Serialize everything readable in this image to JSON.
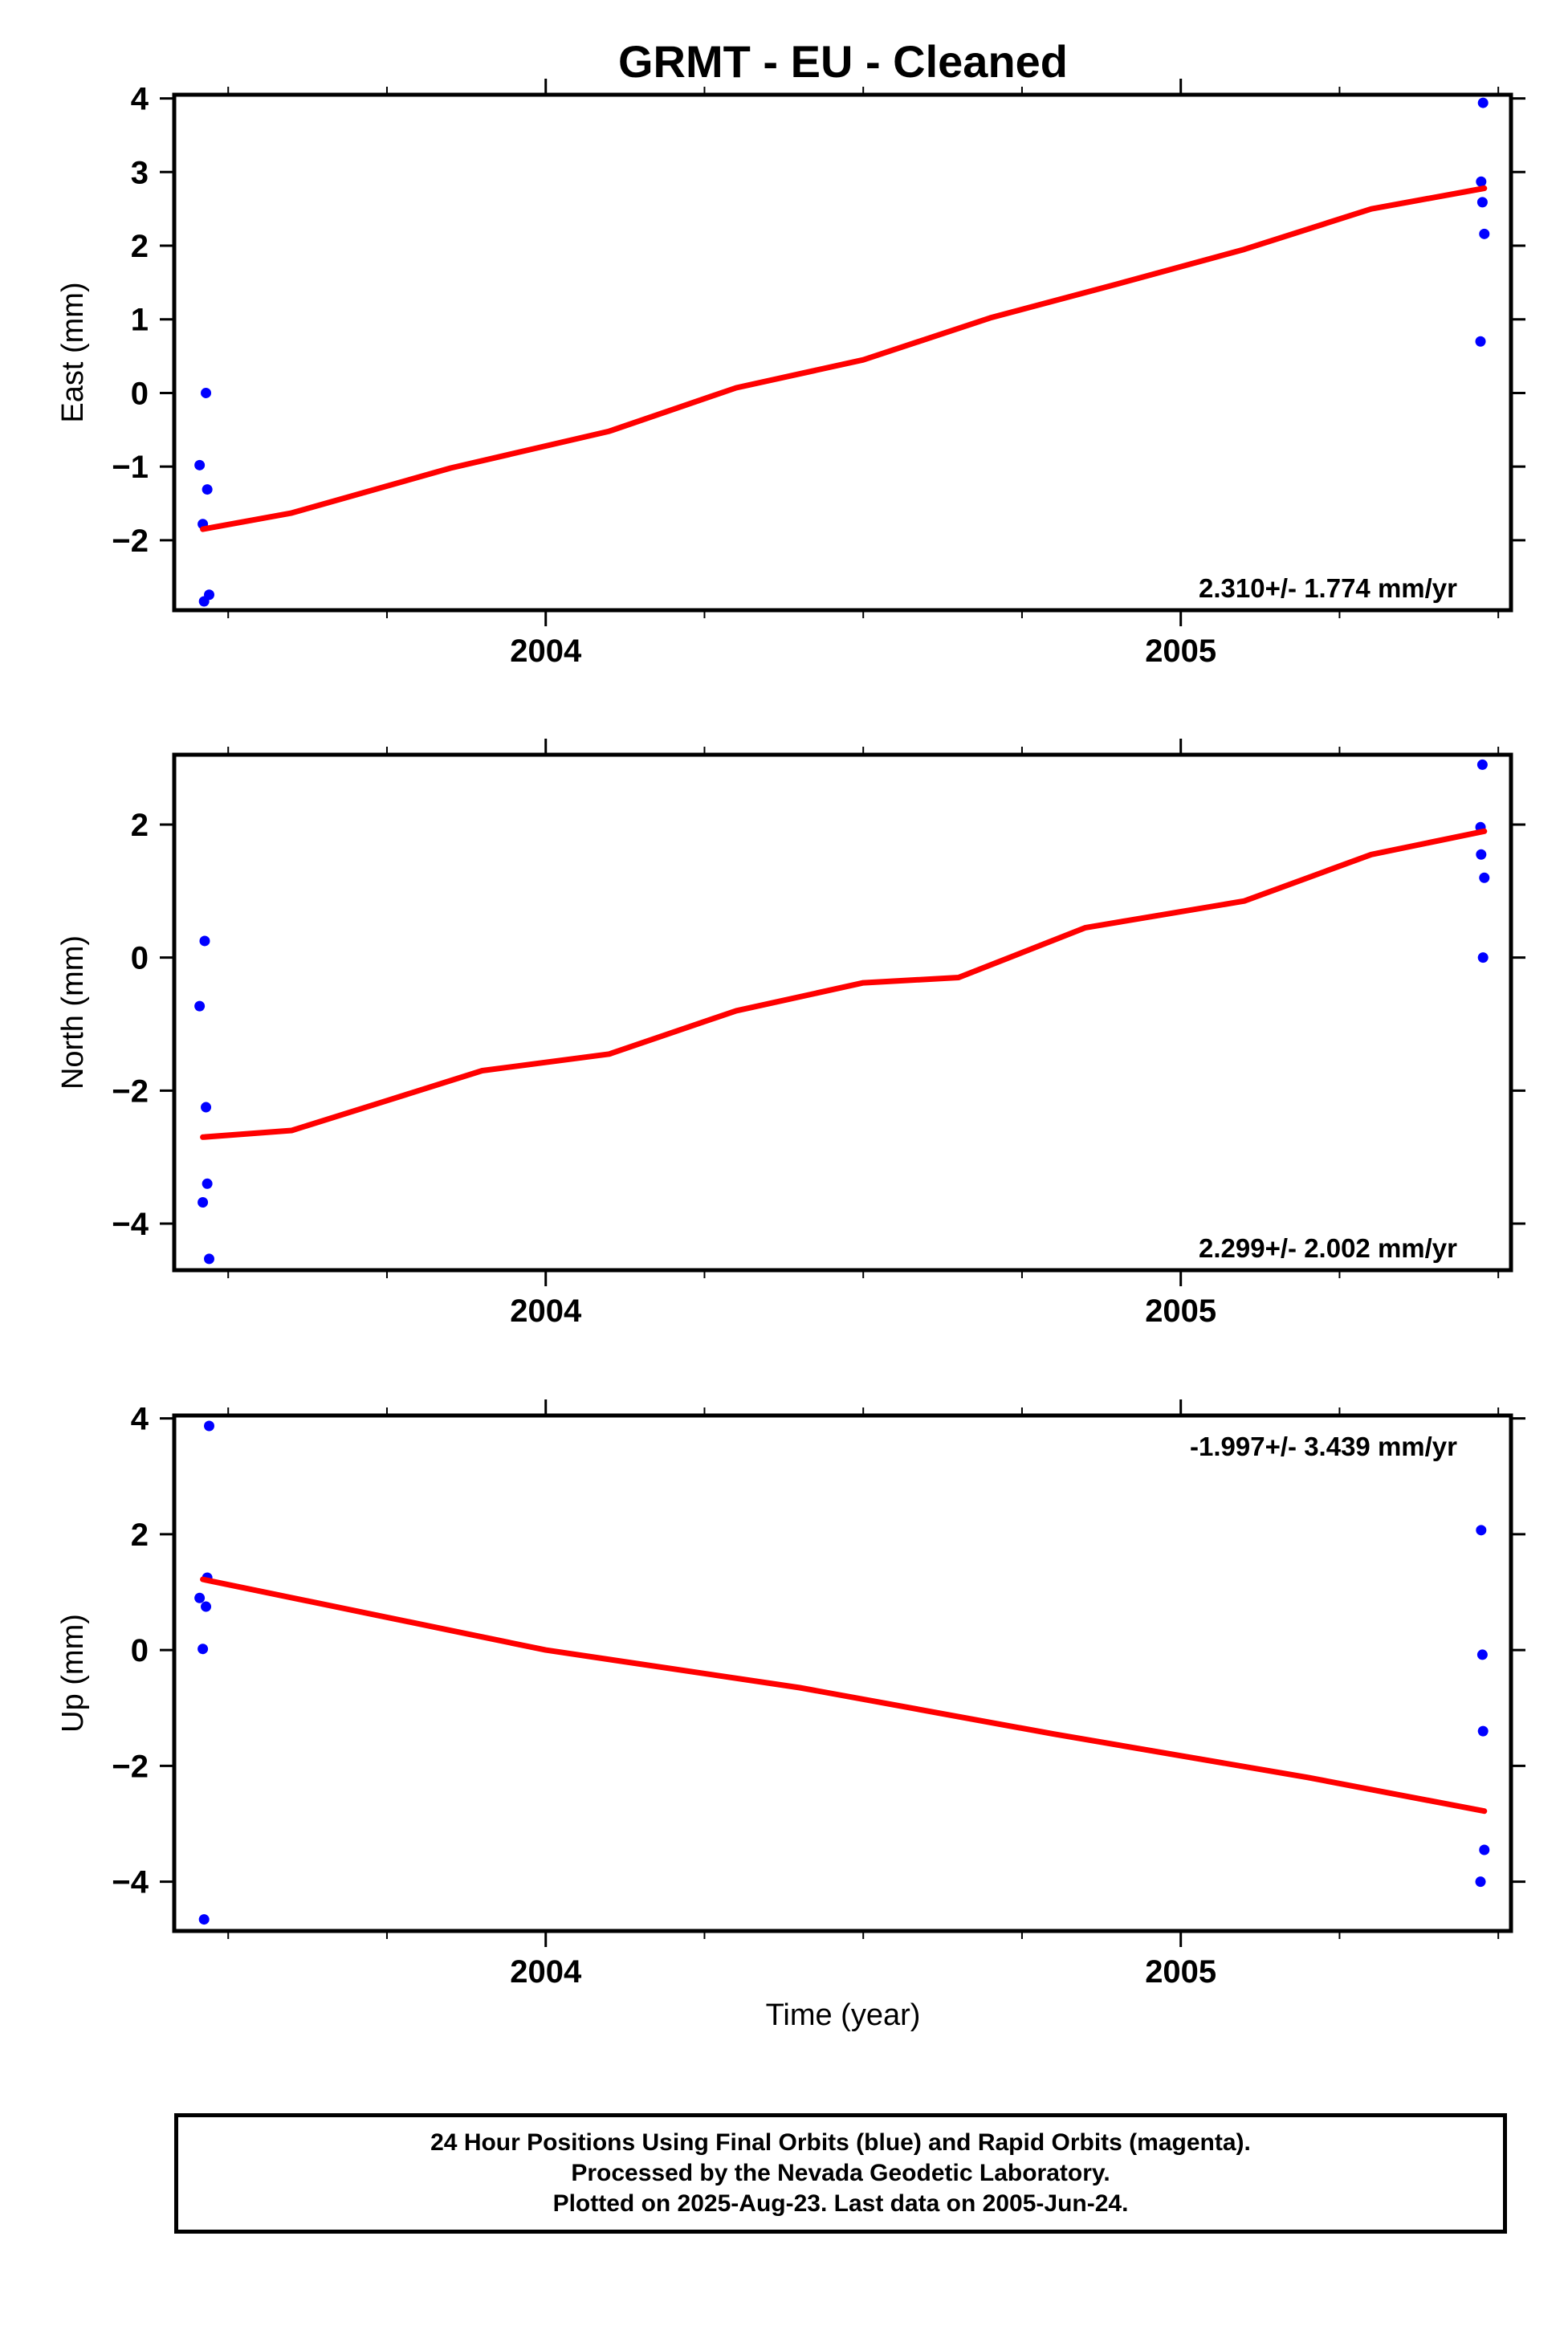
{
  "chart_data": {
    "type": "scatter",
    "title": "GRMT  - EU - Cleaned",
    "xlabel": "Time (year)",
    "xlim": [
      2003.415,
      2005.52
    ],
    "x_ticks": [
      {
        "value": 2004,
        "label": "2004"
      },
      {
        "value": 2005,
        "label": "2005"
      }
    ],
    "x_minor_ticks": [
      2003.5,
      2003.75,
      2004.25,
      2004.5,
      2004.75,
      2005.25,
      2005.5
    ],
    "panels": [
      {
        "name": "east",
        "ylabel": "East (mm)",
        "ylim": [
          -2.95,
          4.05
        ],
        "y_ticks": [
          {
            "value": 4,
            "label": "4"
          },
          {
            "value": 3,
            "label": "3"
          },
          {
            "value": 2,
            "label": "2"
          },
          {
            "value": 1,
            "label": "1"
          },
          {
            "value": 0,
            "label": "0"
          },
          {
            "value": -1,
            "label": "−1"
          },
          {
            "value": -2,
            "label": "−2"
          }
        ],
        "rate_label": "2.310+/- 1.774 mm/yr",
        "rate_position": "bottom-right",
        "series": [
          {
            "color": "#0000ff",
            "points": [
              [
                2003.455,
                -0.98
              ],
              [
                2003.46,
                -1.78
              ],
              [
                2003.462,
                -2.83
              ],
              [
                2003.465,
                0.0
              ],
              [
                2003.467,
                -1.31
              ],
              [
                2003.47,
                -2.74
              ],
              [
                2005.472,
                0.7
              ],
              [
                2005.473,
                2.87
              ],
              [
                2005.475,
                2.59
              ],
              [
                2005.476,
                3.94
              ],
              [
                2005.478,
                2.16
              ]
            ]
          },
          {
            "color": "#ff0000",
            "line": [
              [
                2003.46,
                -1.85
              ],
              [
                2003.6,
                -1.63
              ],
              [
                2003.85,
                -1.02
              ],
              [
                2004.1,
                -0.52
              ],
              [
                2004.3,
                0.07
              ],
              [
                2004.5,
                0.45
              ],
              [
                2004.7,
                1.02
              ],
              [
                2004.9,
                1.48
              ],
              [
                2005.1,
                1.95
              ],
              [
                2005.3,
                2.5
              ],
              [
                2005.478,
                2.78
              ]
            ]
          }
        ]
      },
      {
        "name": "north",
        "ylabel": "North (mm)",
        "ylim": [
          -4.7,
          3.05
        ],
        "y_ticks": [
          {
            "value": 2,
            "label": "2"
          },
          {
            "value": 0,
            "label": "0"
          },
          {
            "value": -2,
            "label": "−2"
          },
          {
            "value": -4,
            "label": "−4"
          }
        ],
        "rate_label": "2.299+/- 2.002 mm/yr",
        "rate_position": "bottom-right",
        "series": [
          {
            "color": "#0000ff",
            "points": [
              [
                2003.455,
                -0.73
              ],
              [
                2003.46,
                -3.68
              ],
              [
                2003.463,
                0.25
              ],
              [
                2003.465,
                -2.25
              ],
              [
                2003.467,
                -3.4
              ],
              [
                2003.47,
                -4.53
              ],
              [
                2005.472,
                1.96
              ],
              [
                2005.473,
                1.55
              ],
              [
                2005.475,
                2.9
              ],
              [
                2005.476,
                0.0
              ],
              [
                2005.478,
                1.2
              ]
            ]
          },
          {
            "color": "#ff0000",
            "line": [
              [
                2003.46,
                -2.7
              ],
              [
                2003.6,
                -2.6
              ],
              [
                2003.75,
                -2.15
              ],
              [
                2003.9,
                -1.7
              ],
              [
                2004.1,
                -1.45
              ],
              [
                2004.3,
                -0.8
              ],
              [
                2004.5,
                -0.38
              ],
              [
                2004.65,
                -0.3
              ],
              [
                2004.85,
                0.45
              ],
              [
                2005.1,
                0.85
              ],
              [
                2005.3,
                1.55
              ],
              [
                2005.478,
                1.9
              ]
            ]
          }
        ]
      },
      {
        "name": "up",
        "ylabel": "Up (mm)",
        "ylim": [
          -4.85,
          4.05
        ],
        "y_ticks": [
          {
            "value": 4,
            "label": "4"
          },
          {
            "value": 2,
            "label": "2"
          },
          {
            "value": 0,
            "label": "0"
          },
          {
            "value": -2,
            "label": "−2"
          },
          {
            "value": -4,
            "label": "−4"
          }
        ],
        "rate_label": "-1.997+/- 3.439 mm/yr",
        "rate_position": "top-right",
        "series": [
          {
            "color": "#0000ff",
            "points": [
              [
                2003.455,
                0.9
              ],
              [
                2003.46,
                0.02
              ],
              [
                2003.462,
                -4.65
              ],
              [
                2003.465,
                0.75
              ],
              [
                2003.467,
                1.25
              ],
              [
                2003.47,
                3.87
              ],
              [
                2005.472,
                -4.0
              ],
              [
                2005.473,
                2.07
              ],
              [
                2005.475,
                -0.08
              ],
              [
                2005.476,
                -1.4
              ],
              [
                2005.478,
                -3.45
              ]
            ]
          },
          {
            "color": "#ff0000",
            "line": [
              [
                2003.46,
                1.22
              ],
              [
                2004.0,
                0.0
              ],
              [
                2004.4,
                -0.65
              ],
              [
                2004.8,
                -1.45
              ],
              [
                2005.2,
                -2.2
              ],
              [
                2005.478,
                -2.78
              ]
            ]
          }
        ]
      }
    ]
  },
  "footer": {
    "line1": "24 Hour Positions Using Final Orbits (blue) and Rapid Orbits (magenta).",
    "line2": "Processed by the Nevada Geodetic Laboratory.",
    "line3": "Plotted on 2025-Aug-23. Last data on 2005-Jun-24."
  }
}
